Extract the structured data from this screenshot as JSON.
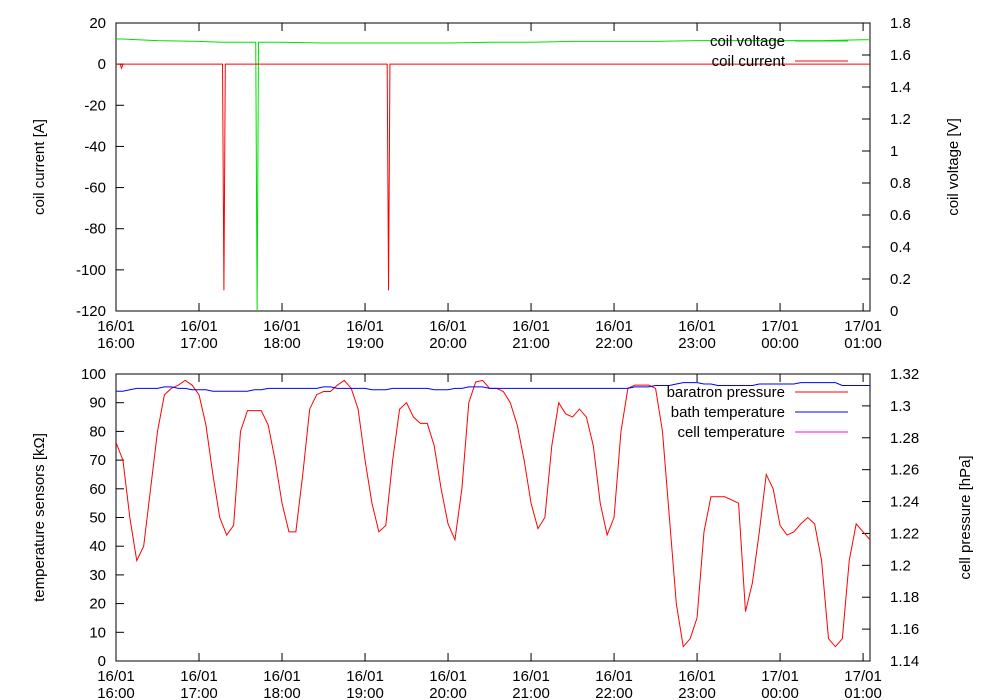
{
  "chart_data": [
    {
      "type": "line",
      "x": [
        "16/01 16:00",
        "16/01 16:03",
        "16/01 16:04",
        "16/01 16:05",
        "16/01 16:30",
        "16/01 17:00",
        "16/01 17:17",
        "16/01 17:18",
        "16/01 17:19",
        "16/01 17:30",
        "16/01 17:41",
        "16/01 17:42",
        "16/01 17:43",
        "16/01 18:00",
        "16/01 18:30",
        "16/01 19:00",
        "16/01 19:16",
        "16/01 19:17",
        "16/01 19:18",
        "16/01 19:30",
        "16/01 20:00",
        "16/01 20:30",
        "16/01 21:00",
        "16/01 21:30",
        "16/01 22:00",
        "16/01 22:30",
        "16/01 23:00",
        "16/01 23:30",
        "17/01 00:00",
        "17/01 00:30",
        "17/01 01:00",
        "17/01 01:05"
      ],
      "series": [
        {
          "name": "coil voltage",
          "color": "#00e000",
          "axis": "y2",
          "values": [
            1.7,
            1.7,
            1.7,
            1.7,
            1.69,
            1.685,
            1.68,
            1.68,
            1.68,
            1.68,
            1.68,
            0,
            1.68,
            1.68,
            1.675,
            1.675,
            1.675,
            1.675,
            1.675,
            1.675,
            1.675,
            1.68,
            1.68,
            1.685,
            1.685,
            1.685,
            1.69,
            1.69,
            1.69,
            1.69,
            1.695,
            1.695
          ]
        },
        {
          "name": "coil current",
          "color": "#ff0000",
          "axis": "y",
          "values": [
            0,
            0,
            -2,
            0,
            0,
            0,
            0,
            -110,
            0,
            0,
            0,
            0,
            0,
            0,
            0,
            0,
            0,
            -110,
            0,
            0,
            0,
            0,
            0,
            0,
            0,
            0,
            0,
            0,
            0,
            0,
            0,
            0
          ]
        }
      ],
      "ylabel": "coil current [A]",
      "y2label": "coil voltage [V]",
      "xlim": [
        "16/01 16:00",
        "17/01 01:05"
      ],
      "xticks": [
        "16/01 16:00",
        "16/01 17:00",
        "16/01 18:00",
        "16/01 19:00",
        "16/01 20:00",
        "16/01 21:00",
        "16/01 22:00",
        "16/01 23:00",
        "17/01 00:00",
        "17/01 01:00"
      ],
      "ylim": [
        -120,
        20
      ],
      "yticks": [
        -120,
        -100,
        -80,
        -60,
        -40,
        -20,
        0,
        20
      ],
      "y2lim": [
        0,
        1.8
      ],
      "y2ticks": [
        0,
        0.2,
        0.4,
        0.6,
        0.8,
        1,
        1.2,
        1.4,
        1.6,
        1.8
      ],
      "legend": "top right"
    },
    {
      "type": "line",
      "x": [
        "16/01 16:00",
        "16/01 16:05",
        "16/01 16:10",
        "16/01 16:15",
        "16/01 16:20",
        "16/01 16:25",
        "16/01 16:30",
        "16/01 16:35",
        "16/01 16:40",
        "16/01 16:45",
        "16/01 16:50",
        "16/01 16:55",
        "16/01 17:00",
        "16/01 17:05",
        "16/01 17:10",
        "16/01 17:15",
        "16/01 17:20",
        "16/01 17:25",
        "16/01 17:30",
        "16/01 17:35",
        "16/01 17:40",
        "16/01 17:45",
        "16/01 17:50",
        "16/01 17:55",
        "16/01 18:00",
        "16/01 18:05",
        "16/01 18:10",
        "16/01 18:15",
        "16/01 18:20",
        "16/01 18:25",
        "16/01 18:30",
        "16/01 18:35",
        "16/01 18:40",
        "16/01 18:45",
        "16/01 18:50",
        "16/01 18:55",
        "16/01 19:00",
        "16/01 19:05",
        "16/01 19:10",
        "16/01 19:15",
        "16/01 19:20",
        "16/01 19:25",
        "16/01 19:30",
        "16/01 19:35",
        "16/01 19:40",
        "16/01 19:45",
        "16/01 19:50",
        "16/01 19:55",
        "16/01 20:00",
        "16/01 20:05",
        "16/01 20:10",
        "16/01 20:15",
        "16/01 20:20",
        "16/01 20:25",
        "16/01 20:30",
        "16/01 20:35",
        "16/01 20:40",
        "16/01 20:45",
        "16/01 20:50",
        "16/01 20:55",
        "16/01 21:00",
        "16/01 21:05",
        "16/01 21:10",
        "16/01 21:15",
        "16/01 21:20",
        "16/01 21:25",
        "16/01 21:30",
        "16/01 21:35",
        "16/01 21:40",
        "16/01 21:45",
        "16/01 21:50",
        "16/01 21:55",
        "16/01 22:00",
        "16/01 22:05",
        "16/01 22:10",
        "16/01 22:15",
        "16/01 22:20",
        "16/01 22:25",
        "16/01 22:30",
        "16/01 22:35",
        "16/01 22:40",
        "16/01 22:45",
        "16/01 22:50",
        "16/01 22:55",
        "16/01 23:00",
        "16/01 23:05",
        "16/01 23:10",
        "16/01 23:15",
        "16/01 23:20",
        "16/01 23:25",
        "16/01 23:30",
        "16/01 23:35",
        "16/01 23:40",
        "16/01 23:45",
        "16/01 23:50",
        "16/01 23:55",
        "17/01 00:00",
        "17/01 00:05",
        "17/01 00:10",
        "17/01 00:15",
        "17/01 00:20",
        "17/01 00:25",
        "17/01 00:30",
        "17/01 00:35",
        "17/01 00:40",
        "17/01 00:45",
        "17/01 00:50",
        "17/01 00:55",
        "17/01 01:00",
        "17/01 01:05"
      ],
      "series": [
        {
          "name": "baratron pressure",
          "color": "#ff0000",
          "axis": "y2",
          "values": [
            1.277,
            1.266,
            1.23,
            1.203,
            1.212,
            1.248,
            1.284,
            1.307,
            1.311,
            1.313,
            1.316,
            1.313,
            1.307,
            1.288,
            1.257,
            1.23,
            1.219,
            1.225,
            1.284,
            1.297,
            1.297,
            1.297,
            1.288,
            1.266,
            1.239,
            1.221,
            1.221,
            1.257,
            1.298,
            1.307,
            1.309,
            1.309,
            1.313,
            1.316,
            1.311,
            1.298,
            1.266,
            1.239,
            1.221,
            1.225,
            1.266,
            1.298,
            1.302,
            1.293,
            1.289,
            1.289,
            1.275,
            1.248,
            1.226,
            1.216,
            1.248,
            1.302,
            1.315,
            1.316,
            1.311,
            1.311,
            1.309,
            1.302,
            1.288,
            1.266,
            1.239,
            1.223,
            1.23,
            1.275,
            1.302,
            1.295,
            1.293,
            1.298,
            1.293,
            1.275,
            1.239,
            1.219,
            1.23,
            1.284,
            1.311,
            1.313,
            1.313,
            1.313,
            1.311,
            1.284,
            1.23,
            1.176,
            1.149,
            1.154,
            1.167,
            1.221,
            1.243,
            1.243,
            1.243,
            1.241,
            1.239,
            1.171,
            1.189,
            1.221,
            1.257,
            1.248,
            1.225,
            1.219,
            1.221,
            1.226,
            1.23,
            1.226,
            1.203,
            1.154,
            1.149,
            1.154,
            1.203,
            1.226,
            1.221,
            1.216
          ]
        },
        {
          "name": "bath temperature",
          "color": "#0000ff",
          "axis": "y",
          "values": [
            94,
            94,
            94.5,
            95,
            95,
            95,
            95,
            95.5,
            95.5,
            95,
            95,
            94.5,
            94.5,
            94.5,
            94,
            94,
            94,
            94,
            94,
            94,
            94.5,
            94.5,
            95,
            95,
            95,
            95,
            95,
            95,
            95,
            95,
            95.5,
            95.5,
            95,
            95,
            95,
            95,
            95,
            94.5,
            94.5,
            94.5,
            95,
            95,
            95,
            95,
            95,
            95,
            94.5,
            94.5,
            94.5,
            95,
            95,
            95.5,
            95.5,
            95.5,
            95,
            95,
            95,
            95,
            95,
            95,
            95,
            95,
            95,
            95,
            95,
            95,
            95,
            95,
            95,
            95,
            95,
            95,
            95,
            95,
            95,
            95.5,
            95.5,
            95.5,
            96,
            96,
            96,
            96.5,
            97,
            97,
            97,
            96.5,
            96.5,
            96,
            96,
            96,
            96,
            96,
            96,
            96.5,
            96.5,
            96.5,
            96.5,
            96.5,
            96.5,
            97,
            97,
            97,
            97,
            97,
            97,
            96,
            96,
            96,
            96,
            96
          ]
        },
        {
          "name": "cell temperature",
          "color": "#ff00ff",
          "axis": "y",
          "values": [
            null,
            null,
            null,
            null,
            null,
            null,
            null,
            null,
            null,
            null,
            null,
            null,
            null,
            null,
            null,
            null,
            null,
            null,
            null,
            null,
            null,
            null,
            null,
            null,
            null,
            null,
            null,
            null,
            null,
            null,
            null,
            null,
            null,
            null,
            null,
            null,
            null,
            null,
            null,
            null,
            null,
            null,
            null,
            null,
            null,
            null,
            null,
            null,
            null,
            null,
            null,
            null,
            null,
            null,
            null,
            null,
            null,
            null,
            null,
            null,
            null,
            null,
            null,
            null,
            null,
            null,
            null,
            null,
            null,
            null,
            null,
            null,
            null,
            null,
            null,
            null,
            null,
            null,
            null,
            null,
            null,
            null,
            null,
            null,
            null,
            null,
            null,
            null,
            null,
            null,
            null,
            null,
            null,
            null,
            null,
            null,
            null,
            null,
            null,
            null,
            null,
            null,
            null,
            null,
            null,
            null,
            null,
            null,
            null,
            null
          ]
        }
      ],
      "ylabel": "temperature sensors [kΩ]",
      "y2label": "cell pressure [hPa]",
      "xlim": [
        "16/01 16:00",
        "17/01 01:05"
      ],
      "xticks": [
        "16/01 16:00",
        "16/01 17:00",
        "16/01 18:00",
        "16/01 19:00",
        "16/01 20:00",
        "16/01 21:00",
        "16/01 22:00",
        "16/01 23:00",
        "17/01 00:00",
        "17/01 01:00"
      ],
      "ylim": [
        0,
        100
      ],
      "yticks": [
        0,
        10,
        20,
        30,
        40,
        50,
        60,
        70,
        80,
        90,
        100
      ],
      "y2lim": [
        1.14,
        1.32
      ],
      "y2ticks": [
        1.14,
        1.16,
        1.18,
        1.2,
        1.22,
        1.24,
        1.26,
        1.28,
        1.3,
        1.32
      ],
      "legend": "top right"
    }
  ]
}
